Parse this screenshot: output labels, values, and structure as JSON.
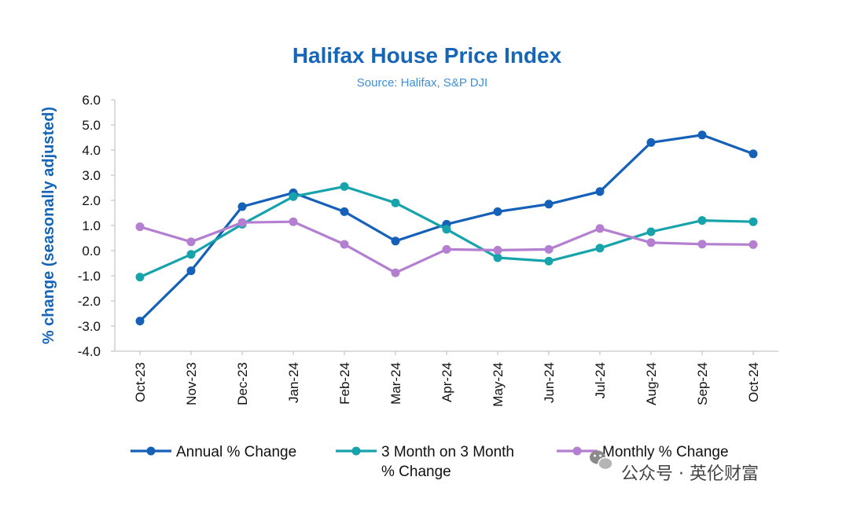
{
  "chart_data": {
    "type": "line",
    "title": "Halifax House Price Index",
    "subtitle": "Source: Halifax, S&P DJI",
    "ylabel": "% change (seasonally adjusted)",
    "xlabel": "",
    "ylim": [
      -4.0,
      6.0
    ],
    "yticks": [
      "6.0",
      "5.0",
      "4.0",
      "3.0",
      "2.0",
      "1.0",
      "0.0",
      "-1.0",
      "-2.0",
      "-3.0",
      "-4.0"
    ],
    "grid": false,
    "legend_position": "bottom",
    "categories": [
      "Oct-23",
      "Nov-23",
      "Dec-23",
      "Jan-24",
      "Feb-24",
      "Mar-24",
      "Apr-24",
      "May-24",
      "Jun-24",
      "Jul-24",
      "Aug-24",
      "Sep-24",
      "Oct-24"
    ],
    "series": [
      {
        "name": "Annual % Change",
        "color": "#1560b8",
        "values": [
          -2.8,
          -0.8,
          1.75,
          2.3,
          1.55,
          0.38,
          1.05,
          1.55,
          1.85,
          2.35,
          4.3,
          4.6,
          3.85
        ]
      },
      {
        "name": "3 Month on 3 Month % Change",
        "name_lines": [
          "3 Month on 3 Month",
          "% Change"
        ],
        "color": "#17a3ab",
        "values": [
          -1.05,
          -0.15,
          1.05,
          2.15,
          2.55,
          1.9,
          0.85,
          -0.28,
          -0.42,
          0.1,
          0.75,
          1.2,
          1.15
        ]
      },
      {
        "name": "Monthly % Change",
        "color": "#b47fd0",
        "values": [
          0.95,
          0.35,
          1.12,
          1.15,
          0.25,
          -0.88,
          0.05,
          0.02,
          0.05,
          0.88,
          0.32,
          0.26,
          0.24
        ]
      }
    ]
  },
  "watermark": {
    "icon": "wechat-icon",
    "text": "公众号 · 英伦财富"
  }
}
